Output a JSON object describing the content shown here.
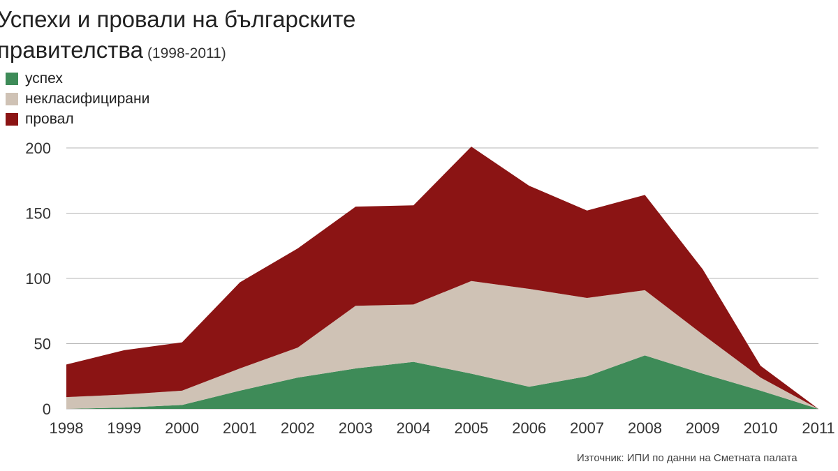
{
  "chart_data": {
    "type": "area",
    "title_line1": "Успехи и провали на българските",
    "title_line2": "правителства",
    "subtitle": "(1998-2011)",
    "stacked": true,
    "x": [
      "1998",
      "1999",
      "2000",
      "2001",
      "2002",
      "2003",
      "2004",
      "2005",
      "2006",
      "2007",
      "2008",
      "2009",
      "2010",
      "2011"
    ],
    "series": [
      {
        "name": "успех",
        "color": "#3e8b58",
        "values": [
          0,
          1,
          3,
          14,
          24,
          31,
          36,
          27,
          17,
          25,
          41,
          27,
          14,
          0
        ]
      },
      {
        "name": "некласифицирани",
        "color": "#cfc2b5",
        "values": [
          9,
          10,
          11,
          17,
          23,
          48,
          44,
          71,
          75,
          60,
          50,
          30,
          10,
          0
        ]
      },
      {
        "name": "провал",
        "color": "#8b1414",
        "values": [
          25,
          34,
          37,
          66,
          76,
          76,
          76,
          103,
          79,
          67,
          73,
          50,
          9,
          0
        ]
      }
    ],
    "ylim": [
      0,
      200
    ],
    "yticks": [
      0,
      50,
      100,
      150,
      200
    ],
    "grid": true,
    "legend_position": "top-left"
  },
  "source": "Източник: ИПИ по данни на Сметната палата"
}
